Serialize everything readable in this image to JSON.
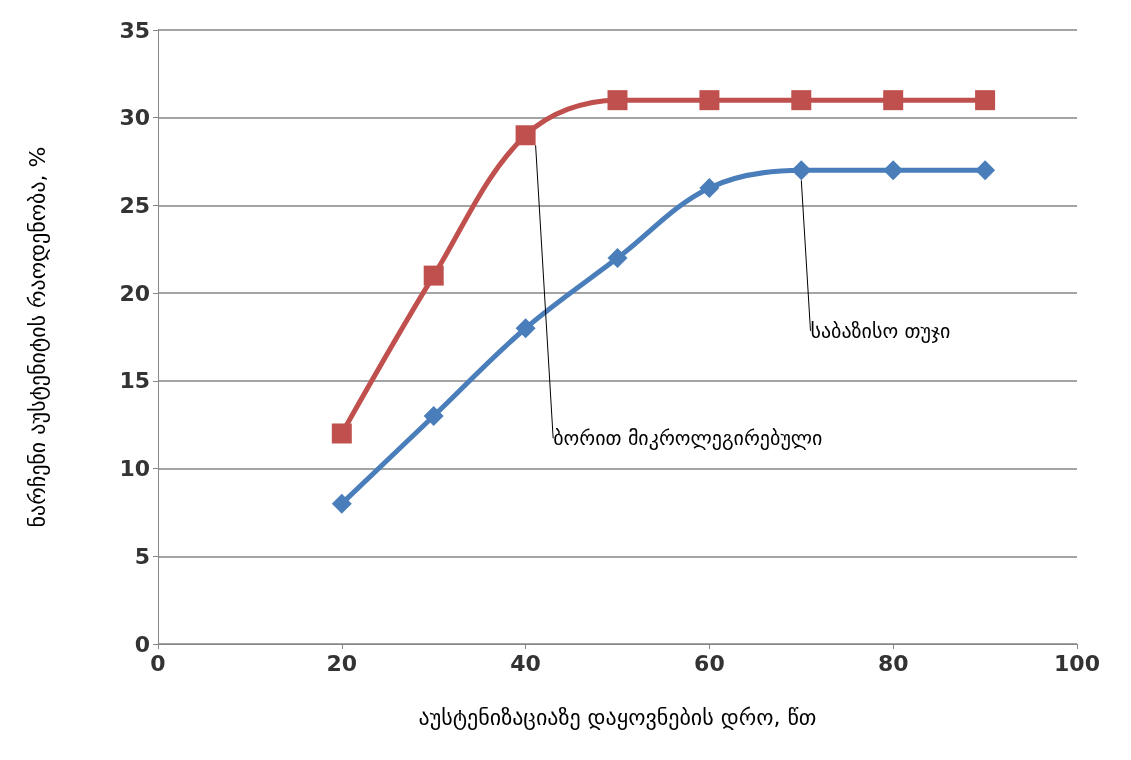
{
  "chart_data": {
    "type": "line",
    "xlabel": "აუსტენიზაციაზე დაყოვნების დრო, წთ",
    "ylabel": "ნარჩენი აუსტენიტის რაოდენობა, %",
    "x": [
      20,
      30,
      40,
      50,
      60,
      70,
      80,
      90
    ],
    "series": [
      {
        "name": "ბორით მიკროლეგირებული",
        "color": "#c0504d",
        "marker": "square",
        "values": [
          12,
          21,
          29,
          31,
          31,
          31,
          31,
          31
        ]
      },
      {
        "name": "საბაზისო თუჯი",
        "color": "#4a7ebb",
        "marker": "diamond",
        "values": [
          8,
          13,
          18,
          22,
          26,
          27,
          27,
          27
        ]
      }
    ],
    "xlim": [
      0,
      100
    ],
    "xticks": [
      0,
      20,
      40,
      60,
      80,
      100
    ],
    "ylim": [
      0,
      35
    ],
    "yticks": [
      0,
      5,
      10,
      15,
      20,
      25,
      30,
      35
    ],
    "grid": "y",
    "legend": false
  }
}
